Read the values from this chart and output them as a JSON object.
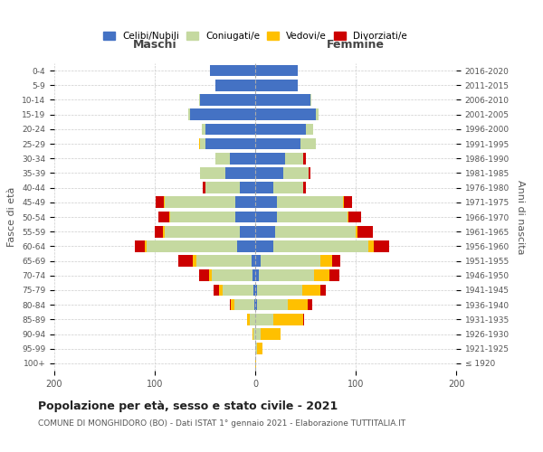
{
  "age_groups": [
    "100+",
    "95-99",
    "90-94",
    "85-89",
    "80-84",
    "75-79",
    "70-74",
    "65-69",
    "60-64",
    "55-59",
    "50-54",
    "45-49",
    "40-44",
    "35-39",
    "30-34",
    "25-29",
    "20-24",
    "15-19",
    "10-14",
    "5-9",
    "0-4"
  ],
  "birth_years": [
    "≤ 1920",
    "1921-1925",
    "1926-1930",
    "1931-1935",
    "1936-1940",
    "1941-1945",
    "1946-1950",
    "1951-1955",
    "1956-1960",
    "1961-1965",
    "1966-1970",
    "1971-1975",
    "1976-1980",
    "1981-1985",
    "1986-1990",
    "1991-1995",
    "1996-2000",
    "2001-2005",
    "2006-2010",
    "2011-2015",
    "2016-2020"
  ],
  "colors": {
    "celibi": "#4472c4",
    "coniugati": "#c5d9a0",
    "vedovi": "#ffc000",
    "divorziati": "#cc0000"
  },
  "maschi": {
    "celibi": [
      0,
      0,
      0,
      0,
      1,
      2,
      3,
      4,
      18,
      15,
      20,
      20,
      15,
      30,
      25,
      50,
      50,
      65,
      55,
      40,
      45
    ],
    "coniugati": [
      0,
      0,
      2,
      5,
      20,
      30,
      40,
      55,
      90,
      75,
      65,
      70,
      35,
      25,
      15,
      5,
      3,
      2,
      1,
      0,
      0
    ],
    "vedovi": [
      0,
      0,
      1,
      3,
      3,
      4,
      3,
      3,
      2,
      2,
      1,
      1,
      0,
      0,
      0,
      1,
      0,
      0,
      0,
      0,
      0
    ],
    "divorziati": [
      0,
      0,
      0,
      0,
      1,
      5,
      10,
      15,
      10,
      8,
      10,
      8,
      2,
      0,
      0,
      0,
      0,
      0,
      0,
      0,
      0
    ]
  },
  "femmine": {
    "celibi": [
      0,
      0,
      0,
      0,
      2,
      2,
      4,
      5,
      18,
      20,
      22,
      22,
      18,
      28,
      30,
      45,
      50,
      60,
      55,
      42,
      42
    ],
    "coniugati": [
      0,
      2,
      5,
      18,
      30,
      45,
      55,
      60,
      95,
      80,
      70,
      65,
      30,
      25,
      18,
      15,
      8,
      3,
      1,
      0,
      0
    ],
    "vedovi": [
      1,
      5,
      20,
      30,
      20,
      18,
      15,
      12,
      5,
      2,
      1,
      1,
      0,
      0,
      0,
      0,
      0,
      0,
      0,
      0,
      0
    ],
    "divorziati": [
      0,
      0,
      0,
      1,
      5,
      5,
      10,
      8,
      15,
      15,
      12,
      8,
      2,
      2,
      2,
      0,
      0,
      0,
      0,
      0,
      0
    ]
  },
  "xlim": 200,
  "title": "Popolazione per età, sesso e stato civile - 2021",
  "subtitle": "COMUNE DI MONGHIDORO (BO) - Dati ISTAT 1° gennaio 2021 - Elaborazione TUTTITALIA.IT",
  "ylabel_left": "Fasce di età",
  "ylabel_right": "Anni di nascita",
  "xlabel_left": "Maschi",
  "xlabel_right": "Femmine",
  "legend_labels": [
    "Celibi/Nubili",
    "Coniugati/e",
    "Vedovi/e",
    "Divorziati/e"
  ],
  "background_color": "#ffffff",
  "grid_color": "#cccccc",
  "title_fontsize": 9,
  "subtitle_fontsize": 6.5
}
